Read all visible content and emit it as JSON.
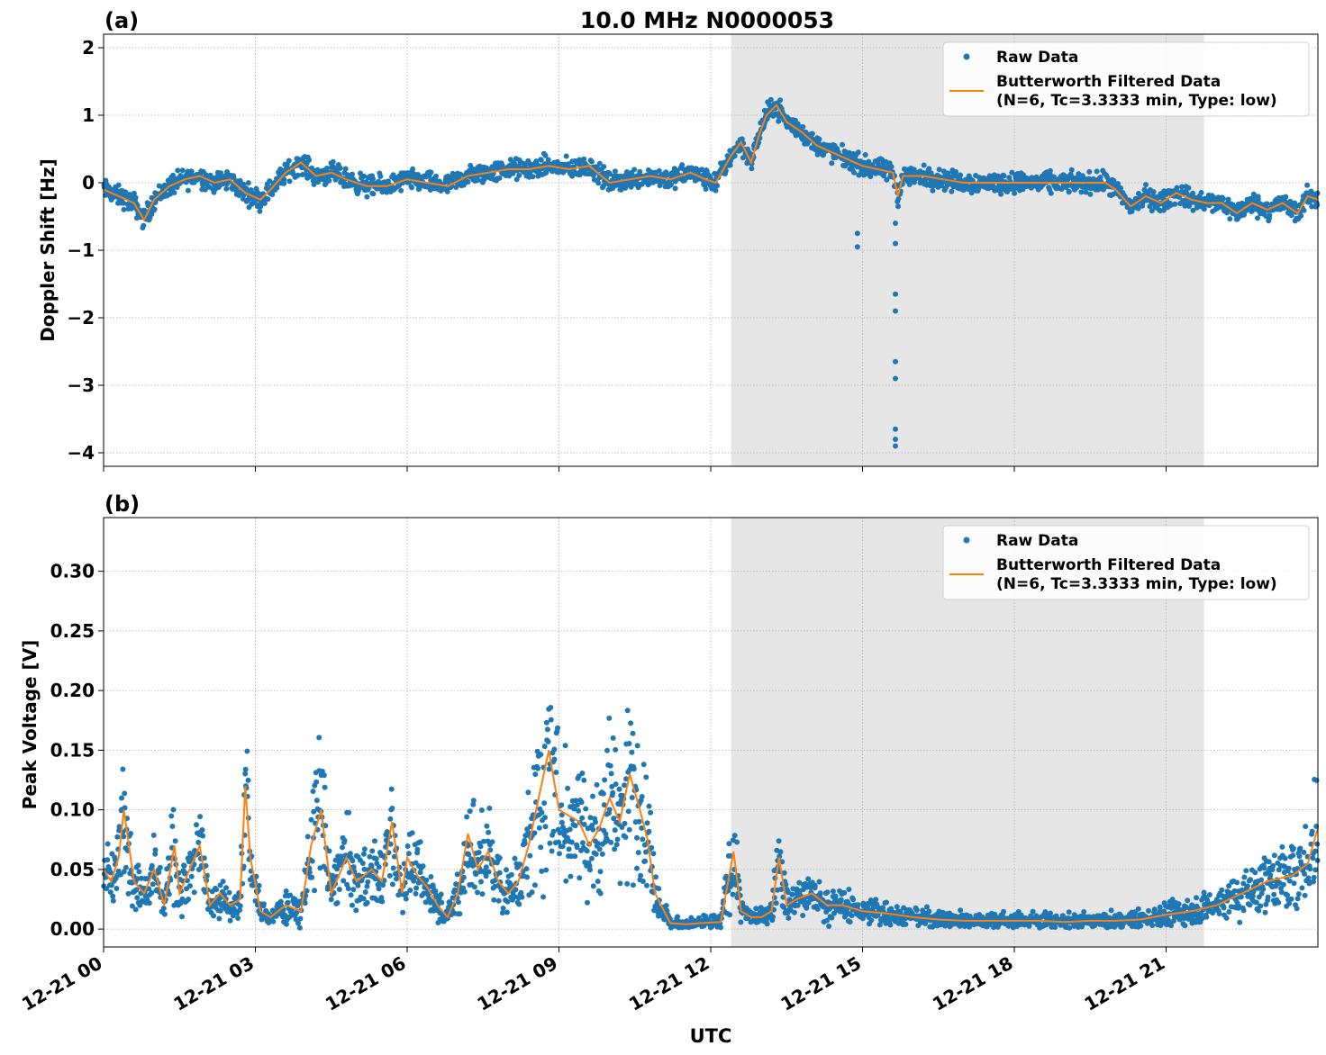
{
  "figure": {
    "title": "10.0 MHz N0000053",
    "xlabel": "UTC",
    "shade_interval_hours": [
      12.4,
      21.75
    ]
  },
  "chart_data": [
    {
      "type": "scatter",
      "panel_label": "(a)",
      "ylabel": "Doppler Shift [Hz]",
      "xlim_hours": [
        0,
        24
      ],
      "ylim": [
        -4.2,
        2.2
      ],
      "yticks": [
        2,
        1,
        0,
        -1,
        -2,
        -3,
        -4
      ],
      "ytick_labels": [
        "2",
        "1",
        "0",
        "−1",
        "−2",
        "−3",
        "−4"
      ],
      "xticks_hours": [
        0,
        3,
        6,
        9,
        12,
        15,
        18,
        21
      ],
      "xtick_labels": [
        "12-21 00",
        "12-21 03",
        "12-21 06",
        "12-21 09",
        "12-21 12",
        "12-21 15",
        "12-21 18",
        "12-21 21"
      ],
      "grid": true,
      "legend_position": "top-right",
      "legend": [
        "Raw Data",
        "Butterworth Filtered Data",
        "(N=6, Tc=3.3333 min, Type: low)"
      ],
      "series": [
        {
          "name": "Butterworth Filtered Data",
          "color": "#ff7f0e",
          "x_hours": [
            0,
            0.3,
            0.6,
            0.8,
            1.0,
            1.3,
            1.6,
            1.9,
            2.2,
            2.5,
            2.8,
            3.1,
            3.3,
            3.6,
            3.9,
            4.2,
            4.5,
            4.8,
            5.2,
            5.6,
            6.0,
            6.4,
            6.8,
            7.2,
            7.6,
            8.0,
            8.4,
            8.8,
            9.2,
            9.6,
            10.0,
            10.4,
            10.8,
            11.2,
            11.6,
            11.9,
            12.1,
            12.4,
            12.6,
            12.8,
            12.95,
            13.1,
            13.3,
            13.5,
            13.8,
            14.1,
            14.4,
            14.7,
            15.0,
            15.3,
            15.6,
            15.7,
            15.8,
            16.2,
            16.6,
            17.0,
            17.5,
            18.0,
            18.5,
            19.0,
            19.5,
            19.8,
            20.0,
            20.3,
            20.6,
            20.9,
            21.2,
            21.5,
            21.8,
            22.1,
            22.4,
            22.7,
            23.0,
            23.3,
            23.6,
            23.8,
            24.0
          ],
          "y": [
            -0.1,
            -0.2,
            -0.3,
            -0.55,
            -0.25,
            -0.05,
            0.05,
            0.1,
            0.0,
            0.05,
            -0.15,
            -0.25,
            -0.1,
            0.15,
            0.3,
            0.1,
            0.15,
            0.05,
            -0.05,
            -0.05,
            0.05,
            0.0,
            -0.05,
            0.1,
            0.15,
            0.2,
            0.2,
            0.25,
            0.2,
            0.25,
            0.0,
            0.05,
            0.1,
            0.05,
            0.15,
            0.05,
            0.0,
            0.4,
            0.6,
            0.3,
            0.7,
            1.0,
            1.15,
            0.9,
            0.75,
            0.55,
            0.45,
            0.35,
            0.25,
            0.2,
            0.15,
            -0.2,
            0.1,
            0.1,
            0.05,
            0.0,
            0.0,
            0.0,
            0.0,
            0.0,
            0.0,
            0.0,
            -0.1,
            -0.35,
            -0.2,
            -0.3,
            -0.15,
            -0.25,
            -0.3,
            -0.3,
            -0.45,
            -0.3,
            -0.4,
            -0.3,
            -0.45,
            -0.2,
            -0.25
          ]
        },
        {
          "name": "Raw Data",
          "color": "#1f77b4",
          "outlier_x_hours": [
            14.9,
            14.9,
            15.65,
            15.65,
            15.65,
            15.65,
            15.65,
            15.65,
            15.65,
            15.65,
            15.65
          ],
          "outlier_y": [
            -0.95,
            -0.75,
            -0.6,
            -0.9,
            -1.65,
            -1.9,
            -2.65,
            -2.9,
            -3.65,
            -3.8,
            -3.9
          ]
        }
      ]
    },
    {
      "type": "scatter",
      "panel_label": "(b)",
      "ylabel": "Peak Voltage [V]",
      "xlim_hours": [
        0,
        24
      ],
      "ylim": [
        -0.015,
        0.345
      ],
      "yticks": [
        0.3,
        0.25,
        0.2,
        0.15,
        0.1,
        0.05,
        0.0
      ],
      "ytick_labels": [
        "0.30",
        "0.25",
        "0.20",
        "0.15",
        "0.10",
        "0.05",
        "0.00"
      ],
      "xticks_hours": [
        0,
        3,
        6,
        9,
        12,
        15,
        18,
        21
      ],
      "xtick_labels": [
        "12-21 00",
        "12-21 03",
        "12-21 06",
        "12-21 09",
        "12-21 12",
        "12-21 15",
        "12-21 18",
        "12-21 21"
      ],
      "grid": true,
      "legend_position": "top-right",
      "legend": [
        "Raw Data",
        "Butterworth Filtered Data",
        "(N=6, Tc=3.3333 min, Type: low)"
      ],
      "series": [
        {
          "name": "Butterworth Filtered Data",
          "color": "#ff7f0e",
          "x_hours": [
            0,
            0.15,
            0.3,
            0.4,
            0.6,
            0.8,
            1.0,
            1.2,
            1.4,
            1.5,
            1.7,
            1.9,
            2.1,
            2.3,
            2.5,
            2.7,
            2.8,
            2.9,
            3.1,
            3.3,
            3.6,
            3.9,
            4.1,
            4.3,
            4.5,
            4.8,
            5.0,
            5.3,
            5.5,
            5.7,
            5.9,
            6.0,
            6.2,
            6.4,
            6.6,
            6.8,
            7.0,
            7.2,
            7.4,
            7.6,
            7.8,
            8.0,
            8.2,
            8.4,
            8.6,
            8.8,
            9.0,
            9.2,
            9.4,
            9.6,
            9.8,
            10.0,
            10.2,
            10.4,
            10.6,
            10.75,
            10.9,
            11.2,
            11.5,
            11.8,
            12.2,
            12.45,
            12.6,
            12.8,
            13.0,
            13.2,
            13.35,
            13.5,
            13.7,
            14.0,
            14.3,
            14.6,
            15.0,
            15.5,
            16.0,
            16.5,
            17.0,
            17.5,
            18.0,
            18.5,
            19.0,
            19.5,
            20.0,
            20.5,
            21.0,
            21.5,
            22.0,
            22.5,
            23.0,
            23.5,
            23.8,
            24.0
          ],
          "y": [
            0.05,
            0.04,
            0.06,
            0.1,
            0.04,
            0.03,
            0.05,
            0.02,
            0.07,
            0.03,
            0.05,
            0.07,
            0.02,
            0.03,
            0.02,
            0.025,
            0.12,
            0.06,
            0.015,
            0.01,
            0.02,
            0.015,
            0.07,
            0.1,
            0.03,
            0.06,
            0.04,
            0.05,
            0.04,
            0.09,
            0.03,
            0.06,
            0.045,
            0.035,
            0.02,
            0.01,
            0.03,
            0.08,
            0.05,
            0.065,
            0.04,
            0.03,
            0.04,
            0.07,
            0.11,
            0.15,
            0.1,
            0.095,
            0.09,
            0.07,
            0.085,
            0.11,
            0.09,
            0.13,
            0.1,
            0.075,
            0.03,
            0.005,
            0.004,
            0.005,
            0.006,
            0.065,
            0.015,
            0.01,
            0.01,
            0.015,
            0.06,
            0.02,
            0.025,
            0.03,
            0.02,
            0.02,
            0.015,
            0.013,
            0.01,
            0.008,
            0.007,
            0.007,
            0.007,
            0.007,
            0.006,
            0.007,
            0.007,
            0.008,
            0.012,
            0.015,
            0.02,
            0.03,
            0.04,
            0.045,
            0.055,
            0.085
          ]
        },
        {
          "name": "Raw Data",
          "color": "#1f77b4"
        }
      ]
    }
  ]
}
